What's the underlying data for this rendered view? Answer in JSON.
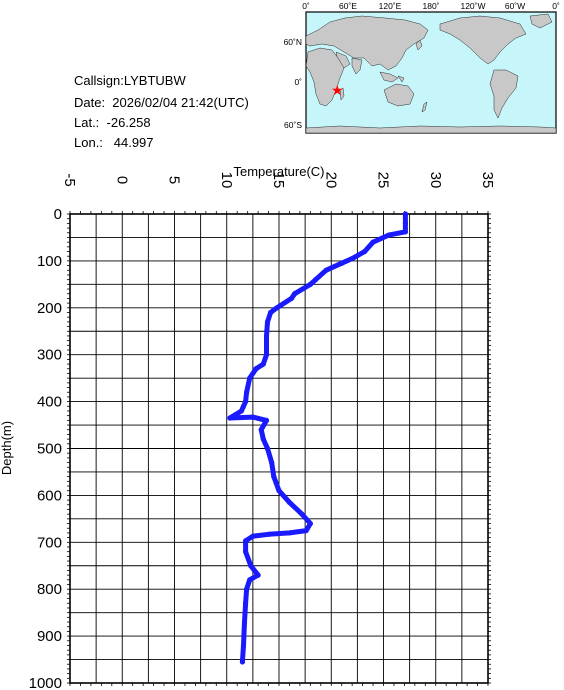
{
  "info": {
    "callsign": "Callsign:LYBTUBW",
    "date": "Date:  2026/02/04 21:42(UTC)",
    "lat": "Lat.:  -26.258",
    "lon": "Lon.:   44.997"
  },
  "map": {
    "lon_labels": [
      "0˚",
      "60˚E",
      "120˚E",
      "180˚",
      "120˚W",
      "60˚W",
      "0˚"
    ],
    "lat_labels": [
      "60˚N",
      "0˚",
      "60˚S"
    ],
    "marker": {
      "lat": -26.258,
      "lon": 44.997,
      "color": "#ff0000"
    },
    "ocean_color": "#c6f5fa",
    "land_color": "#c8c8c8"
  },
  "chart_data": {
    "type": "line",
    "xlabel": "Temperature(C)",
    "ylabel": "Depth(m)",
    "xlim": [
      -5,
      35
    ],
    "ylim": [
      1000,
      0
    ],
    "x_ticks": [
      "-5",
      "0",
      "5",
      "10",
      "15",
      "20",
      "25",
      "30",
      "35"
    ],
    "y_ticks": [
      "0",
      "100",
      "200",
      "300",
      "400",
      "500",
      "600",
      "700",
      "800",
      "900",
      "1000"
    ],
    "grid": true,
    "series_color": "#1a1aff",
    "series": [
      {
        "temperature": [
          27.1,
          27.1,
          27.1,
          25.5,
          24.0,
          23.2,
          22.0,
          21.0,
          19.5,
          18.5,
          18.0,
          16.5,
          16.2,
          14.8,
          14.2,
          13.9,
          13.8,
          13.8,
          13.5,
          12.8,
          12.2,
          11.9,
          11.8,
          11.6,
          11.4,
          10.3,
          12.5,
          13.8,
          13.3,
          13.5,
          13.9,
          14.3,
          14.5,
          15.0,
          16.0,
          17.2,
          18.0,
          17.6,
          16.0,
          14.0,
          12.5,
          11.8,
          11.8,
          12.3,
          13.0,
          12.2,
          11.9,
          11.8,
          11.7,
          11.6,
          11.5
        ],
        "depth": [
          0,
          20,
          38,
          45,
          60,
          80,
          95,
          105,
          120,
          140,
          150,
          170,
          180,
          200,
          210,
          230,
          260,
          300,
          320,
          330,
          350,
          380,
          400,
          410,
          420,
          435,
          433,
          440,
          460,
          480,
          500,
          530,
          560,
          590,
          615,
          640,
          660,
          675,
          680,
          683,
          687,
          697,
          720,
          750,
          770,
          780,
          800,
          830,
          870,
          920,
          955
        ]
      }
    ]
  }
}
